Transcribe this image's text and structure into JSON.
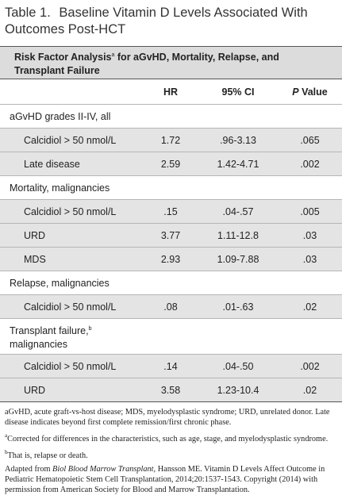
{
  "title": {
    "label": "Table 1.",
    "text": "Baseline Vitamin D Levels Associated With Outcomes Post-HCT"
  },
  "table": {
    "caption": {
      "prefix": "Risk Factor Analysis",
      "superscript": "a",
      "rest": " for aGvHD, Mortality, Relapse, and Transplant Failure"
    },
    "columns": {
      "hr": "HR",
      "ci": "95% CI",
      "p_italic": "P",
      "p_rest": " Value"
    },
    "sections": [
      {
        "label": "aGvHD grades II-IV, all",
        "rows": [
          [
            "Calcidiol > 50 nmol/L",
            "1.72",
            ".96-3.13",
            ".065"
          ],
          [
            "Late disease",
            "2.59",
            "1.42-4.71",
            ".002"
          ]
        ]
      },
      {
        "label": "Mortality, malignancies",
        "rows": [
          [
            "Calcidiol > 50 nmol/L",
            ".15",
            ".04-.57",
            ".005"
          ],
          [
            "URD",
            "3.77",
            "1.11-12.8",
            ".03"
          ],
          [
            "MDS",
            "2.93",
            "1.09-7.88",
            ".03"
          ]
        ]
      },
      {
        "label": "Relapse, malignancies",
        "rows": [
          [
            "Calcidiol > 50 nmol/L",
            ".08",
            ".01-.63",
            ".02"
          ]
        ]
      },
      {
        "label": "Transplant failure,",
        "superscript": "b",
        "label_cont": "malignancies",
        "rows": [
          [
            "Calcidiol > 50 nmol/L",
            ".14",
            ".04-.50",
            ".002"
          ],
          [
            "URD",
            "3.58",
            "1.23-10.4",
            ".02"
          ]
        ]
      }
    ]
  },
  "notes": {
    "abbreviations": "aGvHD, acute graft-vs-host disease; MDS, myelodysplastic syndrome; URD, unrelated donor. Late disease indicates beyond first complete remission/first chronic phase.",
    "a": {
      "mark": "a",
      "text": "Corrected for differences in the characteristics, such as age, stage, and myelodysplastic syndrome."
    },
    "b": {
      "mark": "b",
      "text": "That is, relapse or death."
    },
    "source": {
      "prefix": "Adapted from ",
      "journal": "Biol Blood Marrow Transplant",
      "rest": ", Hansson ME. Vitamin D Levels Affect Outcome in Pediatric Hematopoietic Stem Cell Transplantation, 2014;20:1537-1543. Copyright (2014) with permission from American Society for Blood and Marrow Transplantation."
    }
  }
}
